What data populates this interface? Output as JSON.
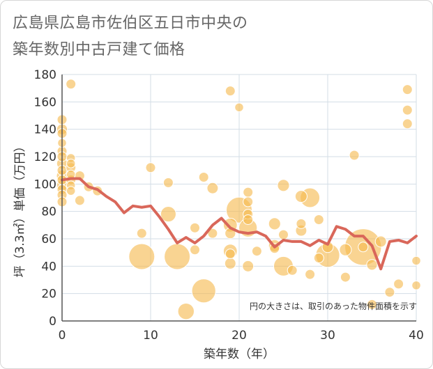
{
  "title_line1": "広島県広島市佐伯区五日市中央の",
  "title_line2": "築年数別中古戸建て価格",
  "chart_data": {
    "type": "scatter",
    "xlabel": "築年数（年）",
    "ylabel": "坪（3.3㎡）単価（万円）",
    "xlim": [
      0,
      40
    ],
    "ylim": [
      0,
      180
    ],
    "xticks": [
      0,
      10,
      20,
      30,
      40
    ],
    "yticks": [
      0,
      20,
      40,
      60,
      80,
      100,
      120,
      140,
      160,
      180
    ],
    "note": "円の大きさは、取引のあった物件面積を示す",
    "colors": {
      "bubble": "#f5b94f",
      "line": "#d9675a",
      "grid": "#d3dde6"
    },
    "bubbles": [
      {
        "x": 0,
        "y": 147,
        "size": 1
      },
      {
        "x": 0,
        "y": 140,
        "size": 1.2
      },
      {
        "x": 0,
        "y": 137,
        "size": 1
      },
      {
        "x": 0,
        "y": 130,
        "size": 0.8
      },
      {
        "x": 0,
        "y": 124,
        "size": 1
      },
      {
        "x": 0,
        "y": 120,
        "size": 1
      },
      {
        "x": 0,
        "y": 115,
        "size": 1.2
      },
      {
        "x": 0,
        "y": 110,
        "size": 1
      },
      {
        "x": 0,
        "y": 106,
        "size": 1.3
      },
      {
        "x": 0,
        "y": 103,
        "size": 1
      },
      {
        "x": 0,
        "y": 99,
        "size": 1.2
      },
      {
        "x": 0,
        "y": 96,
        "size": 1
      },
      {
        "x": 0,
        "y": 92,
        "size": 1
      },
      {
        "x": 0,
        "y": 87,
        "size": 1
      },
      {
        "x": 1,
        "y": 173,
        "size": 1
      },
      {
        "x": 1,
        "y": 119,
        "size": 0.8
      },
      {
        "x": 1,
        "y": 115,
        "size": 0.8
      },
      {
        "x": 1,
        "y": 112,
        "size": 1
      },
      {
        "x": 1,
        "y": 107,
        "size": 0.8
      },
      {
        "x": 1,
        "y": 103,
        "size": 1
      },
      {
        "x": 1,
        "y": 99,
        "size": 0.8
      },
      {
        "x": 1,
        "y": 95,
        "size": 0.8
      },
      {
        "x": 2,
        "y": 106,
        "size": 1
      },
      {
        "x": 2,
        "y": 88,
        "size": 1
      },
      {
        "x": 3,
        "y": 98,
        "size": 1
      },
      {
        "x": 4,
        "y": 95,
        "size": 1
      },
      {
        "x": 9,
        "y": 64,
        "size": 1
      },
      {
        "x": 9,
        "y": 47,
        "size": 7
      },
      {
        "x": 10,
        "y": 112,
        "size": 1
      },
      {
        "x": 12,
        "y": 101,
        "size": 1
      },
      {
        "x": 12,
        "y": 78,
        "size": 2.5
      },
      {
        "x": 13,
        "y": 47,
        "size": 7
      },
      {
        "x": 14,
        "y": 7,
        "size": 2.8
      },
      {
        "x": 15,
        "y": 68,
        "size": 1
      },
      {
        "x": 15,
        "y": 52,
        "size": 1
      },
      {
        "x": 16,
        "y": 105,
        "size": 1
      },
      {
        "x": 16,
        "y": 22,
        "size": 6
      },
      {
        "x": 17,
        "y": 97,
        "size": 1.3
      },
      {
        "x": 17,
        "y": 64,
        "size": 1
      },
      {
        "x": 19,
        "y": 168,
        "size": 1
      },
      {
        "x": 19,
        "y": 70,
        "size": 2
      },
      {
        "x": 19,
        "y": 64,
        "size": 1.2
      },
      {
        "x": 19,
        "y": 51,
        "size": 2
      },
      {
        "x": 19,
        "y": 49,
        "size": 1
      },
      {
        "x": 19,
        "y": 42,
        "size": 1.3
      },
      {
        "x": 20,
        "y": 156,
        "size": 0.8
      },
      {
        "x": 20,
        "y": 81,
        "size": 7
      },
      {
        "x": 21,
        "y": 94,
        "size": 1
      },
      {
        "x": 21,
        "y": 87,
        "size": 1
      },
      {
        "x": 21,
        "y": 78,
        "size": 1
      },
      {
        "x": 21,
        "y": 74,
        "size": 1
      },
      {
        "x": 21,
        "y": 68,
        "size": 3.5
      },
      {
        "x": 21,
        "y": 40,
        "size": 1.3
      },
      {
        "x": 22,
        "y": 51,
        "size": 1
      },
      {
        "x": 24,
        "y": 71,
        "size": 1.5
      },
      {
        "x": 24,
        "y": 55,
        "size": 1.5
      },
      {
        "x": 24,
        "y": 53,
        "size": 1
      },
      {
        "x": 25,
        "y": 99,
        "size": 1.5
      },
      {
        "x": 25,
        "y": 63,
        "size": 1
      },
      {
        "x": 25,
        "y": 40,
        "size": 4
      },
      {
        "x": 26,
        "y": 37,
        "size": 1
      },
      {
        "x": 27,
        "y": 91,
        "size": 1.5
      },
      {
        "x": 27,
        "y": 71,
        "size": 1
      },
      {
        "x": 27,
        "y": 66,
        "size": 1.3
      },
      {
        "x": 28,
        "y": 90,
        "size": 4
      },
      {
        "x": 28,
        "y": 34,
        "size": 1
      },
      {
        "x": 29,
        "y": 74,
        "size": 1
      },
      {
        "x": 29,
        "y": 46,
        "size": 1
      },
      {
        "x": 30,
        "y": 54,
        "size": 1.3
      },
      {
        "x": 30,
        "y": 48,
        "size": 6
      },
      {
        "x": 32,
        "y": 52,
        "size": 1.5
      },
      {
        "x": 32,
        "y": 32,
        "size": 1
      },
      {
        "x": 33,
        "y": 121,
        "size": 1
      },
      {
        "x": 34,
        "y": 54,
        "size": 14
      },
      {
        "x": 34,
        "y": 54,
        "size": 1
      },
      {
        "x": 35,
        "y": 41,
        "size": 1.2
      },
      {
        "x": 35,
        "y": 12,
        "size": 1
      },
      {
        "x": 36,
        "y": 58,
        "size": 1.3
      },
      {
        "x": 37,
        "y": 21,
        "size": 1
      },
      {
        "x": 38,
        "y": 27,
        "size": 1
      },
      {
        "x": 39,
        "y": 169,
        "size": 1
      },
      {
        "x": 39,
        "y": 154,
        "size": 1
      },
      {
        "x": 39,
        "y": 144,
        "size": 1
      },
      {
        "x": 40,
        "y": 44,
        "size": 0.8
      },
      {
        "x": 40,
        "y": 26,
        "size": 0.8
      }
    ],
    "trend_line": {
      "x": [
        0,
        1,
        2,
        3,
        4,
        5,
        6,
        7,
        8,
        9,
        10,
        11,
        12,
        13,
        14,
        15,
        16,
        17,
        18,
        19,
        20,
        21,
        22,
        23,
        24,
        25,
        26,
        27,
        28,
        29,
        30,
        31,
        32,
        33,
        34,
        35,
        36,
        37,
        38,
        39,
        40
      ],
      "y": [
        103,
        104,
        104,
        98,
        96,
        91,
        87,
        79,
        84,
        83,
        84,
        76,
        67,
        57,
        61,
        57,
        62,
        70,
        75,
        68,
        65,
        64,
        65,
        62,
        54,
        59,
        58,
        58,
        55,
        59,
        56,
        69,
        67,
        62,
        62,
        55,
        38,
        58,
        59,
        57,
        62
      ]
    }
  }
}
